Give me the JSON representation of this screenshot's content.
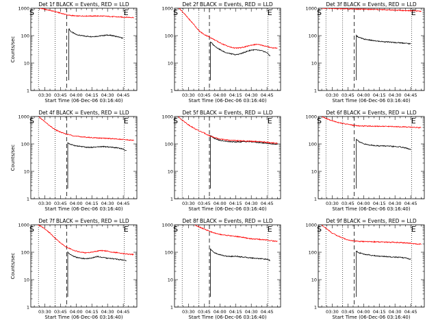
{
  "chart_data": [
    {
      "type": "line",
      "title": "Det 1f BLACK = Events, RED = LLD",
      "xlabel": "Start Time (06-Dec-06 03:16:40)",
      "ylabel": "Counts/sec",
      "yscale": "log",
      "ylim": [
        1,
        1000
      ],
      "xlim": [
        "03:16:40",
        "04:58:00"
      ],
      "x_tick_labels": [
        "03:30",
        "03:45",
        "04:00",
        "04:15",
        "04:30",
        "04:45"
      ],
      "y_tick_labels": [
        "1",
        "10",
        "100",
        "1000"
      ],
      "markers": [
        "S",
        "E"
      ],
      "start_time": "03:18",
      "end_time": "04:48",
      "event_line_time": "03:51",
      "dotted_lines": [
        "03:24",
        "03:40",
        "04:46"
      ],
      "series": [
        {
          "color": "#000000",
          "t": [
            "03:53",
            "03:55",
            "04:00",
            "04:05",
            "04:10",
            "04:15",
            "04:20",
            "04:25",
            "04:30",
            "04:35",
            "04:40",
            "04:45"
          ],
          "values": [
            180,
            140,
            110,
            100,
            95,
            92,
            95,
            100,
            105,
            100,
            90,
            80
          ]
        },
        {
          "color": "#ff0000",
          "t": [
            "03:22",
            "03:28",
            "03:34",
            "03:40",
            "03:46",
            "03:52",
            "04:00",
            "04:08",
            "04:16",
            "04:24",
            "04:32",
            "04:40",
            "04:48",
            "04:55"
          ],
          "values": [
            1100,
            950,
            850,
            750,
            650,
            560,
            520,
            520,
            520,
            520,
            500,
            480,
            470,
            460
          ]
        }
      ]
    },
    {
      "type": "line",
      "title": "Det 2f BLACK = Events, RED = LLD",
      "xlabel": "Start Time (06-Dec-06 03:16:40)",
      "ylabel": "",
      "yscale": "log",
      "ylim": [
        1,
        1000
      ],
      "xlim": [
        "03:16:40",
        "04:58:00"
      ],
      "x_tick_labels": [
        "03:30",
        "03:45",
        "04:00",
        "04:15",
        "04:30",
        "04:45"
      ],
      "y_tick_labels": [
        "1",
        "10",
        "100",
        "1000"
      ],
      "markers": [
        "S",
        "E"
      ],
      "start_time": "03:18",
      "end_time": "04:48",
      "event_line_time": "03:50",
      "dotted_lines": [
        "03:24",
        "03:40",
        "04:46"
      ],
      "series": [
        {
          "color": "#000000",
          "t": [
            "03:51",
            "03:54",
            "03:58",
            "04:02",
            "04:06",
            "04:10",
            "04:15",
            "04:20",
            "04:25",
            "04:30",
            "04:35",
            "04:40",
            "04:45",
            "04:48"
          ],
          "values": [
            60,
            45,
            35,
            28,
            24,
            22,
            20,
            22,
            26,
            30,
            30,
            28,
            24,
            18
          ]
        },
        {
          "color": "#ff0000",
          "t": [
            "03:20",
            "03:25",
            "03:30",
            "03:35",
            "03:40",
            "03:45",
            "03:50",
            "03:55",
            "04:00",
            "04:05",
            "04:10",
            "04:15",
            "04:20",
            "04:25",
            "04:30",
            "04:35",
            "04:40",
            "04:45",
            "04:50",
            "04:55"
          ],
          "values": [
            1100,
            700,
            420,
            260,
            150,
            110,
            90,
            70,
            55,
            45,
            38,
            35,
            36,
            40,
            45,
            48,
            45,
            40,
            36,
            35
          ]
        }
      ]
    },
    {
      "type": "line",
      "title": "Det 3f BLACK = Events, RED = LLD",
      "xlabel": "Start Time (06-Dec-06 03:16:40)",
      "ylabel": "",
      "yscale": "log",
      "ylim": [
        1,
        1000
      ],
      "xlim": [
        "03:16:40",
        "04:58:00"
      ],
      "x_tick_labels": [
        "03:30",
        "03:45",
        "04:00",
        "04:15",
        "04:30",
        "04:45"
      ],
      "y_tick_labels": [
        "1",
        "10",
        "100",
        "1000"
      ],
      "markers": [
        "S",
        "E"
      ],
      "start_time": "03:18",
      "end_time": "04:48",
      "event_line_time": "03:51",
      "dotted_lines": [
        "03:24",
        "03:40",
        "04:46"
      ],
      "series": [
        {
          "color": "#000000",
          "t": [
            "03:53",
            "03:56",
            "04:00",
            "04:05",
            "04:10",
            "04:15",
            "04:20",
            "04:25",
            "04:30",
            "04:35",
            "04:40",
            "04:45"
          ],
          "values": [
            100,
            85,
            75,
            70,
            65,
            62,
            60,
            58,
            56,
            55,
            53,
            50
          ]
        },
        {
          "color": "#ff0000",
          "t": [
            "03:20",
            "03:30",
            "03:40",
            "03:50",
            "04:00",
            "04:10",
            "04:20",
            "04:30",
            "04:40",
            "04:50",
            "04:55"
          ],
          "values": [
            1000,
            980,
            960,
            940,
            920,
            900,
            880,
            850,
            820,
            800,
            780
          ]
        }
      ]
    },
    {
      "type": "line",
      "title": "Det 4f BLACK = Events, RED = LLD",
      "xlabel": "Start Time (06-Dec-06 03:16:40)",
      "ylabel": "Counts/sec",
      "yscale": "log",
      "ylim": [
        1,
        1000
      ],
      "xlim": [
        "03:16:40",
        "04:58:00"
      ],
      "x_tick_labels": [
        "03:30",
        "03:45",
        "04:00",
        "04:15",
        "04:30",
        "04:45"
      ],
      "y_tick_labels": [
        "1",
        "10",
        "100",
        "1000"
      ],
      "markers": [
        "S",
        "E"
      ],
      "start_time": "03:18",
      "end_time": "04:48",
      "event_line_time": "03:51",
      "dotted_lines": [
        "03:24",
        "03:40",
        "04:46"
      ],
      "series": [
        {
          "color": "#000000",
          "t": [
            "03:52",
            "03:55",
            "04:00",
            "04:05",
            "04:10",
            "04:15",
            "04:20",
            "04:25",
            "04:30",
            "04:35",
            "04:40",
            "04:45",
            "04:48"
          ],
          "values": [
            110,
            95,
            85,
            80,
            75,
            75,
            78,
            80,
            78,
            75,
            72,
            65,
            55
          ]
        },
        {
          "color": "#ff0000",
          "t": [
            "03:24",
            "03:30",
            "03:35",
            "03:40",
            "03:45",
            "03:50",
            "03:55",
            "04:00",
            "04:10",
            "04:20",
            "04:30",
            "04:40",
            "04:50",
            "04:55"
          ],
          "values": [
            1000,
            650,
            450,
            330,
            270,
            230,
            210,
            190,
            175,
            165,
            160,
            150,
            140,
            135
          ]
        }
      ]
    },
    {
      "type": "line",
      "title": "Det 5f BLACK = Events, RED = LLD",
      "xlabel": "Start Time (06-Dec-06 03:16:40)",
      "ylabel": "",
      "yscale": "log",
      "ylim": [
        1,
        1000
      ],
      "xlim": [
        "03:16:40",
        "04:58:00"
      ],
      "x_tick_labels": [
        "03:30",
        "03:45",
        "04:00",
        "04:15",
        "04:30",
        "04:45"
      ],
      "y_tick_labels": [
        "1",
        "10",
        "100",
        "1000"
      ],
      "markers": [
        "S",
        "E"
      ],
      "start_time": "03:18",
      "end_time": "04:48",
      "event_line_time": "03:50",
      "dotted_lines": [
        "03:24",
        "03:40",
        "04:46"
      ],
      "series": [
        {
          "color": "#000000",
          "t": [
            "03:51",
            "03:55",
            "04:00",
            "04:05",
            "04:10",
            "04:15",
            "04:20",
            "04:25",
            "04:30",
            "04:35",
            "04:40",
            "04:45",
            "04:50",
            "04:55"
          ],
          "values": [
            200,
            160,
            135,
            125,
            120,
            118,
            120,
            122,
            120,
            115,
            110,
            105,
            100,
            98
          ]
        },
        {
          "color": "#ff0000",
          "t": [
            "03:20",
            "03:25",
            "03:30",
            "03:35",
            "03:40",
            "03:45",
            "03:50",
            "03:55",
            "04:00",
            "04:10",
            "04:20",
            "04:30",
            "04:40",
            "04:50",
            "04:55"
          ],
          "values": [
            1000,
            700,
            500,
            380,
            300,
            250,
            200,
            170,
            150,
            135,
            130,
            125,
            120,
            110,
            105
          ]
        }
      ]
    },
    {
      "type": "line",
      "title": "Det 6f BLACK = Events, RED = LLD",
      "xlabel": "Start Time (06-Dec-06 03:16:40)",
      "ylabel": "",
      "yscale": "log",
      "ylim": [
        1,
        1000
      ],
      "xlim": [
        "03:16:40",
        "04:58:00"
      ],
      "x_tick_labels": [
        "03:30",
        "03:45",
        "04:00",
        "04:15",
        "04:30",
        "04:45"
      ],
      "y_tick_labels": [
        "1",
        "10",
        "100",
        "1000"
      ],
      "markers": [
        "S",
        "E"
      ],
      "start_time": "03:18",
      "end_time": "04:48",
      "event_line_time": "03:51",
      "dotted_lines": [
        "03:24",
        "03:40",
        "04:46"
      ],
      "series": [
        {
          "color": "#000000",
          "t": [
            "03:53",
            "03:56",
            "04:00",
            "04:05",
            "04:10",
            "04:15",
            "04:20",
            "04:25",
            "04:30",
            "04:35",
            "04:40",
            "04:45"
          ],
          "values": [
            150,
            120,
            100,
            92,
            88,
            85,
            85,
            82,
            80,
            78,
            72,
            62
          ]
        },
        {
          "color": "#ff0000",
          "t": [
            "03:20",
            "03:25",
            "03:30",
            "03:35",
            "03:40",
            "03:45",
            "03:50",
            "03:55",
            "04:00",
            "04:10",
            "04:20",
            "04:30",
            "04:40",
            "04:50",
            "04:55"
          ],
          "values": [
            1000,
            820,
            700,
            620,
            560,
            520,
            480,
            460,
            450,
            445,
            440,
            430,
            420,
            400,
            390
          ]
        }
      ]
    },
    {
      "type": "line",
      "title": "Det 7f BLACK = Events, RED = LLD",
      "xlabel": "Start Time (06-Dec-06 03:16:40)",
      "ylabel": "Counts/sec",
      "yscale": "log",
      "ylim": [
        1,
        1000
      ],
      "xlim": [
        "03:16:40",
        "04:58:00"
      ],
      "x_tick_labels": [
        "03:30",
        "03:45",
        "04:00",
        "04:15",
        "04:30",
        "04:45"
      ],
      "y_tick_labels": [
        "1",
        "10",
        "100",
        "1000"
      ],
      "markers": [
        "S",
        "E"
      ],
      "start_time": "03:18",
      "end_time": "04:48",
      "event_line_time": "03:51",
      "dotted_lines": [
        "03:24",
        "03:40",
        "04:46"
      ],
      "series": [
        {
          "color": "#000000",
          "t": [
            "03:52",
            "03:55",
            "04:00",
            "04:05",
            "04:10",
            "04:15",
            "04:20",
            "04:25",
            "04:30",
            "04:35",
            "04:40",
            "04:45",
            "04:48"
          ],
          "values": [
            100,
            80,
            65,
            60,
            58,
            62,
            70,
            65,
            60,
            58,
            55,
            52,
            50
          ]
        },
        {
          "color": "#ff0000",
          "t": [
            "03:22",
            "03:26",
            "03:30",
            "03:35",
            "03:40",
            "03:45",
            "03:50",
            "03:55",
            "04:00",
            "04:05",
            "04:10",
            "04:15",
            "04:20",
            "04:25",
            "04:30",
            "04:35",
            "04:40",
            "04:45",
            "04:50",
            "04:55"
          ],
          "values": [
            1100,
            900,
            700,
            500,
            320,
            220,
            160,
            130,
            110,
            100,
            95,
            100,
            110,
            115,
            110,
            100,
            95,
            90,
            85,
            82
          ]
        }
      ]
    },
    {
      "type": "line",
      "title": "Det 8f BLACK = Events, RED = LLD",
      "xlabel": "Start Time (06-Dec-06 03:16:40)",
      "ylabel": "",
      "yscale": "log",
      "ylim": [
        1,
        1000
      ],
      "xlim": [
        "03:16:40",
        "04:58:00"
      ],
      "x_tick_labels": [
        "03:30",
        "03:45",
        "04:00",
        "04:15",
        "04:30",
        "04:45"
      ],
      "y_tick_labels": [
        "1",
        "10",
        "100",
        "1000"
      ],
      "markers": [
        "S",
        "E"
      ],
      "start_time": "03:18",
      "end_time": "04:48",
      "event_line_time": "03:50",
      "dotted_lines": [
        "03:24",
        "03:40",
        "04:46"
      ],
      "series": [
        {
          "color": "#000000",
          "t": [
            "03:51",
            "03:54",
            "03:58",
            "04:02",
            "04:06",
            "04:10",
            "04:15",
            "04:20",
            "04:25",
            "04:30",
            "04:35",
            "04:40",
            "04:45",
            "04:48"
          ],
          "values": [
            130,
            100,
            85,
            78,
            72,
            70,
            72,
            68,
            65,
            62,
            60,
            58,
            55,
            50
          ]
        },
        {
          "color": "#ff0000",
          "t": [
            "03:36",
            "03:40",
            "03:45",
            "03:50",
            "03:55",
            "04:00",
            "04:05",
            "04:10",
            "04:15",
            "04:20",
            "04:25",
            "04:30",
            "04:35",
            "04:40",
            "04:45",
            "04:50",
            "04:55"
          ],
          "values": [
            1000,
            850,
            700,
            580,
            500,
            450,
            420,
            400,
            380,
            360,
            330,
            310,
            300,
            290,
            280,
            260,
            250
          ]
        }
      ]
    },
    {
      "type": "line",
      "title": "Det 9f BLACK = Events, RED = LLD",
      "xlabel": "Start Time (06-Dec-06 03:16:40)",
      "ylabel": "",
      "yscale": "log",
      "ylim": [
        1,
        1000
      ],
      "xlim": [
        "03:16:40",
        "04:58:00"
      ],
      "x_tick_labels": [
        "03:30",
        "03:45",
        "04:00",
        "04:15",
        "04:30",
        "04:45"
      ],
      "y_tick_labels": [
        "1",
        "10",
        "100",
        "1000"
      ],
      "markers": [
        "S",
        "E"
      ],
      "start_time": "03:18",
      "end_time": "04:48",
      "event_line_time": "03:51",
      "dotted_lines": [
        "03:24",
        "03:40",
        "04:46"
      ],
      "series": [
        {
          "color": "#000000",
          "t": [
            "03:53",
            "03:56",
            "04:00",
            "04:05",
            "04:10",
            "04:15",
            "04:20",
            "04:25",
            "04:30",
            "04:35",
            "04:40",
            "04:45"
          ],
          "values": [
            110,
            95,
            85,
            80,
            75,
            72,
            70,
            68,
            66,
            65,
            62,
            55
          ]
        },
        {
          "color": "#ff0000",
          "t": [
            "03:20",
            "03:25",
            "03:30",
            "03:35",
            "03:40",
            "03:45",
            "03:50",
            "03:55",
            "04:00",
            "04:10",
            "04:20",
            "04:30",
            "04:40",
            "04:50",
            "04:55"
          ],
          "values": [
            1000,
            700,
            500,
            400,
            330,
            280,
            260,
            250,
            245,
            240,
            235,
            230,
            220,
            200,
            195
          ]
        }
      ]
    }
  ]
}
